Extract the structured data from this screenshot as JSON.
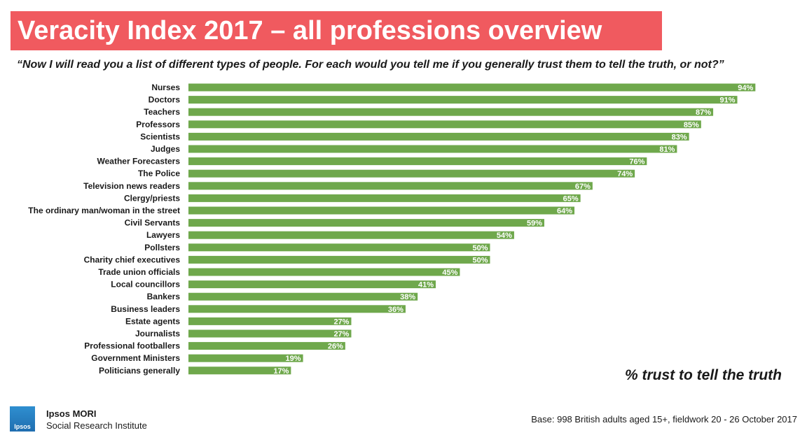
{
  "chart_data": {
    "type": "bar",
    "orientation": "horizontal",
    "title": "Veracity Index 2017 – all professions overview",
    "subtitle": "“Now I will read you a list of different types of people. For each would you tell me if you generally trust them to tell the truth, or not?”",
    "axis_note": "% trust to tell the truth",
    "categories": [
      "Nurses",
      "Doctors",
      "Teachers",
      "Professors",
      "Scientists",
      "Judges",
      "Weather Forecasters",
      "The Police",
      "Television news readers",
      "Clergy/priests",
      "The ordinary man/woman in the street",
      "Civil Servants",
      "Lawyers",
      "Pollsters",
      "Charity chief executives",
      "Trade union officials",
      "Local councillors",
      "Bankers",
      "Business leaders",
      "Estate agents",
      "Journalists",
      "Professional footballers",
      "Government Ministers",
      "Politicians generally"
    ],
    "values": [
      94,
      91,
      87,
      85,
      83,
      81,
      76,
      74,
      67,
      65,
      64,
      59,
      54,
      50,
      50,
      45,
      41,
      38,
      36,
      27,
      27,
      26,
      19,
      17
    ],
    "value_suffix": "%",
    "xlim": [
      0,
      100
    ],
    "grid": false,
    "bar_color": "#6fa84c"
  },
  "colors": {
    "title_background": "#f05a5f",
    "title_text": "#ffffff",
    "logo": "#1f6eb0"
  },
  "footer": {
    "brand_name": "Ipsos MORI",
    "brand_sub": "Social Research Institute",
    "logo_text": "Ipsos",
    "base_note": "Base: 998 British adults aged 15+, fieldwork 20 - 26 October 2017"
  }
}
